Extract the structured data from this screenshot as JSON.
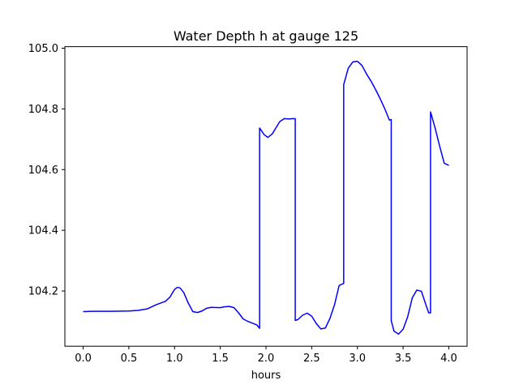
{
  "chart_data": {
    "type": "line",
    "title": "Water Depth h at gauge 125",
    "xlabel": "hours",
    "ylabel": "",
    "xlim": [
      -0.2,
      4.2
    ],
    "ylim": [
      104.018,
      105.005
    ],
    "x_ticks": [
      0.0,
      0.5,
      1.0,
      1.5,
      2.0,
      2.5,
      3.0,
      3.5,
      4.0
    ],
    "x_tick_labels": [
      "0.0",
      "0.5",
      "1.0",
      "1.5",
      "2.0",
      "2.5",
      "3.0",
      "3.5",
      "4.0"
    ],
    "y_ticks": [
      104.2,
      104.4,
      104.6,
      104.8,
      105.0
    ],
    "y_tick_labels": [
      "104.2",
      "104.4",
      "104.6",
      "104.8",
      "105.0"
    ],
    "grid": false,
    "legend": "none",
    "series": [
      {
        "color": "#0000ff",
        "x": [
          0.0,
          0.1,
          0.3,
          0.5,
          0.6,
          0.7,
          0.75,
          0.8,
          0.9,
          0.95,
          1.0,
          1.03,
          1.06,
          1.1,
          1.15,
          1.2,
          1.25,
          1.3,
          1.35,
          1.4,
          1.5,
          1.55,
          1.6,
          1.65,
          1.7,
          1.75,
          1.8,
          1.9,
          1.93,
          1.93,
          1.98,
          2.02,
          2.07,
          2.1,
          2.15,
          2.2,
          2.25,
          2.3,
          2.32,
          2.32,
          2.35,
          2.4,
          2.45,
          2.5,
          2.55,
          2.6,
          2.65,
          2.7,
          2.75,
          2.8,
          2.85,
          2.85,
          2.9,
          2.95,
          3.0,
          3.05,
          3.1,
          3.15,
          3.2,
          3.25,
          3.3,
          3.35,
          3.37,
          3.37,
          3.4,
          3.45,
          3.5,
          3.55,
          3.6,
          3.65,
          3.7,
          3.75,
          3.78,
          3.8,
          3.8,
          3.85,
          3.9,
          3.95,
          4.0
        ],
        "y": [
          104.132,
          104.133,
          104.133,
          104.134,
          104.136,
          104.141,
          104.148,
          104.155,
          104.166,
          104.18,
          104.205,
          104.212,
          104.21,
          104.195,
          104.16,
          104.132,
          104.129,
          104.134,
          104.143,
          104.146,
          104.145,
          104.148,
          104.149,
          104.145,
          104.128,
          104.108,
          104.1,
          104.088,
          104.077,
          104.737,
          104.715,
          104.706,
          104.718,
          104.733,
          104.758,
          104.768,
          104.767,
          104.768,
          104.768,
          104.103,
          104.106,
          104.12,
          104.127,
          104.117,
          104.093,
          104.075,
          104.078,
          104.11,
          104.155,
          104.218,
          104.225,
          104.88,
          104.934,
          104.955,
          104.957,
          104.943,
          104.915,
          104.891,
          104.863,
          104.833,
          104.8,
          104.763,
          104.765,
          104.102,
          104.068,
          104.058,
          104.074,
          104.115,
          104.177,
          104.203,
          104.199,
          104.154,
          104.128,
          104.128,
          104.79,
          104.737,
          104.677,
          104.621,
          104.614
        ]
      }
    ]
  }
}
